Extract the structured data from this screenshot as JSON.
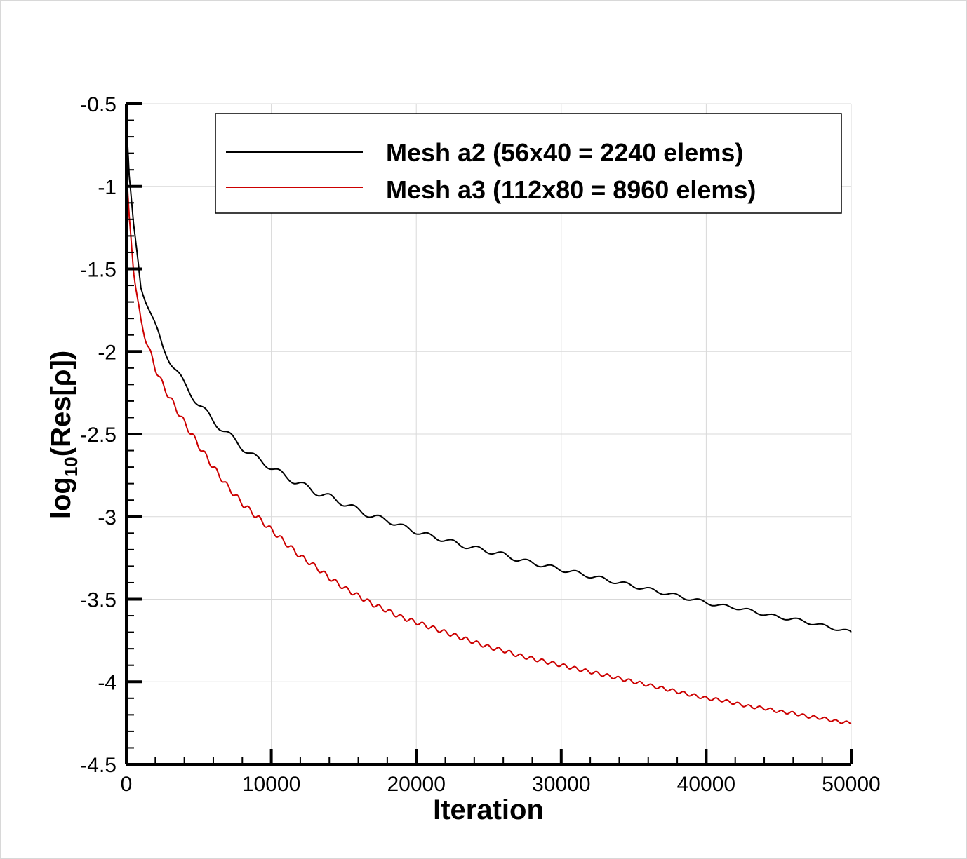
{
  "chart_data": {
    "type": "line",
    "title": "",
    "xlabel": "Iteration",
    "ylabel": {
      "prefix": "log",
      "subscript": "10",
      "suffix": "(Res[ρ])"
    },
    "xlim": [
      0,
      50000
    ],
    "ylim": [
      -4.5,
      -0.5
    ],
    "x_ticks": [
      0,
      10000,
      20000,
      30000,
      40000,
      50000
    ],
    "x_tick_labels": [
      "0",
      "10000",
      "20000",
      "30000",
      "40000",
      "50000"
    ],
    "y_ticks": [
      -0.5,
      -1,
      -1.5,
      -2,
      -2.5,
      -3,
      -3.5,
      -4,
      -4.5
    ],
    "y_tick_labels": [
      "-0.5",
      "-1",
      "-1.5",
      "-2",
      "-2.5",
      "-3",
      "-3.5",
      "-4",
      "-4.5"
    ],
    "grid": true,
    "legend_position": "top-right",
    "series": [
      {
        "name": "Mesh a2 (56x40 = 2240 elems)",
        "color": "#000000",
        "x": [
          0,
          200,
          500,
          800,
          1000,
          1500,
          2000,
          2500,
          3000,
          4000,
          5000,
          6000,
          7000,
          8000,
          9000,
          10000,
          11000,
          12000,
          13000,
          14000,
          15000,
          16000,
          17000,
          18000,
          19000,
          20000,
          21000,
          22000,
          23000,
          24000,
          25000,
          26000,
          27000,
          28000,
          29000,
          30000,
          31000,
          32000,
          33000,
          34000,
          35000,
          36000,
          37000,
          38000,
          39000,
          40000,
          41000,
          42000,
          43000,
          44000,
          45000,
          46000,
          47000,
          48000,
          49000,
          50000
        ],
        "y": [
          -0.6,
          -0.95,
          -1.25,
          -1.45,
          -1.6,
          -1.72,
          -1.85,
          -1.97,
          -2.05,
          -2.2,
          -2.32,
          -2.42,
          -2.5,
          -2.58,
          -2.65,
          -2.7,
          -2.76,
          -2.8,
          -2.85,
          -2.88,
          -2.92,
          -2.96,
          -3.0,
          -3.02,
          -3.06,
          -3.09,
          -3.12,
          -3.14,
          -3.17,
          -3.19,
          -3.21,
          -3.23,
          -3.26,
          -3.28,
          -3.3,
          -3.32,
          -3.34,
          -3.36,
          -3.38,
          -3.4,
          -3.42,
          -3.44,
          -3.46,
          -3.48,
          -3.5,
          -3.52,
          -3.54,
          -3.55,
          -3.57,
          -3.59,
          -3.61,
          -3.62,
          -3.64,
          -3.66,
          -3.68,
          -3.7
        ]
      },
      {
        "name": "Mesh a3 (112x80 = 8960 elems)",
        "color": "#cc0000",
        "x": [
          0,
          200,
          500,
          800,
          1000,
          1500,
          2000,
          2500,
          3000,
          4000,
          5000,
          6000,
          7000,
          8000,
          9000,
          10000,
          11000,
          12000,
          13000,
          14000,
          15000,
          16000,
          17000,
          18000,
          19000,
          20000,
          21000,
          22000,
          23000,
          24000,
          25000,
          26000,
          27000,
          28000,
          29000,
          30000,
          31000,
          32000,
          33000,
          34000,
          35000,
          36000,
          37000,
          38000,
          39000,
          40000,
          41000,
          42000,
          43000,
          44000,
          45000,
          46000,
          47000,
          48000,
          49000,
          50000
        ],
        "y": [
          -0.9,
          -1.2,
          -1.5,
          -1.7,
          -1.82,
          -1.97,
          -2.1,
          -2.2,
          -2.28,
          -2.43,
          -2.57,
          -2.7,
          -2.82,
          -2.92,
          -3.0,
          -3.08,
          -3.16,
          -3.24,
          -3.3,
          -3.37,
          -3.43,
          -3.48,
          -3.53,
          -3.57,
          -3.61,
          -3.64,
          -3.67,
          -3.7,
          -3.73,
          -3.76,
          -3.79,
          -3.81,
          -3.84,
          -3.86,
          -3.88,
          -3.9,
          -3.92,
          -3.94,
          -3.96,
          -3.98,
          -4.0,
          -4.02,
          -4.04,
          -4.06,
          -4.08,
          -4.1,
          -4.11,
          -4.13,
          -4.15,
          -4.16,
          -4.18,
          -4.19,
          -4.21,
          -4.22,
          -4.24,
          -4.25
        ]
      }
    ]
  }
}
